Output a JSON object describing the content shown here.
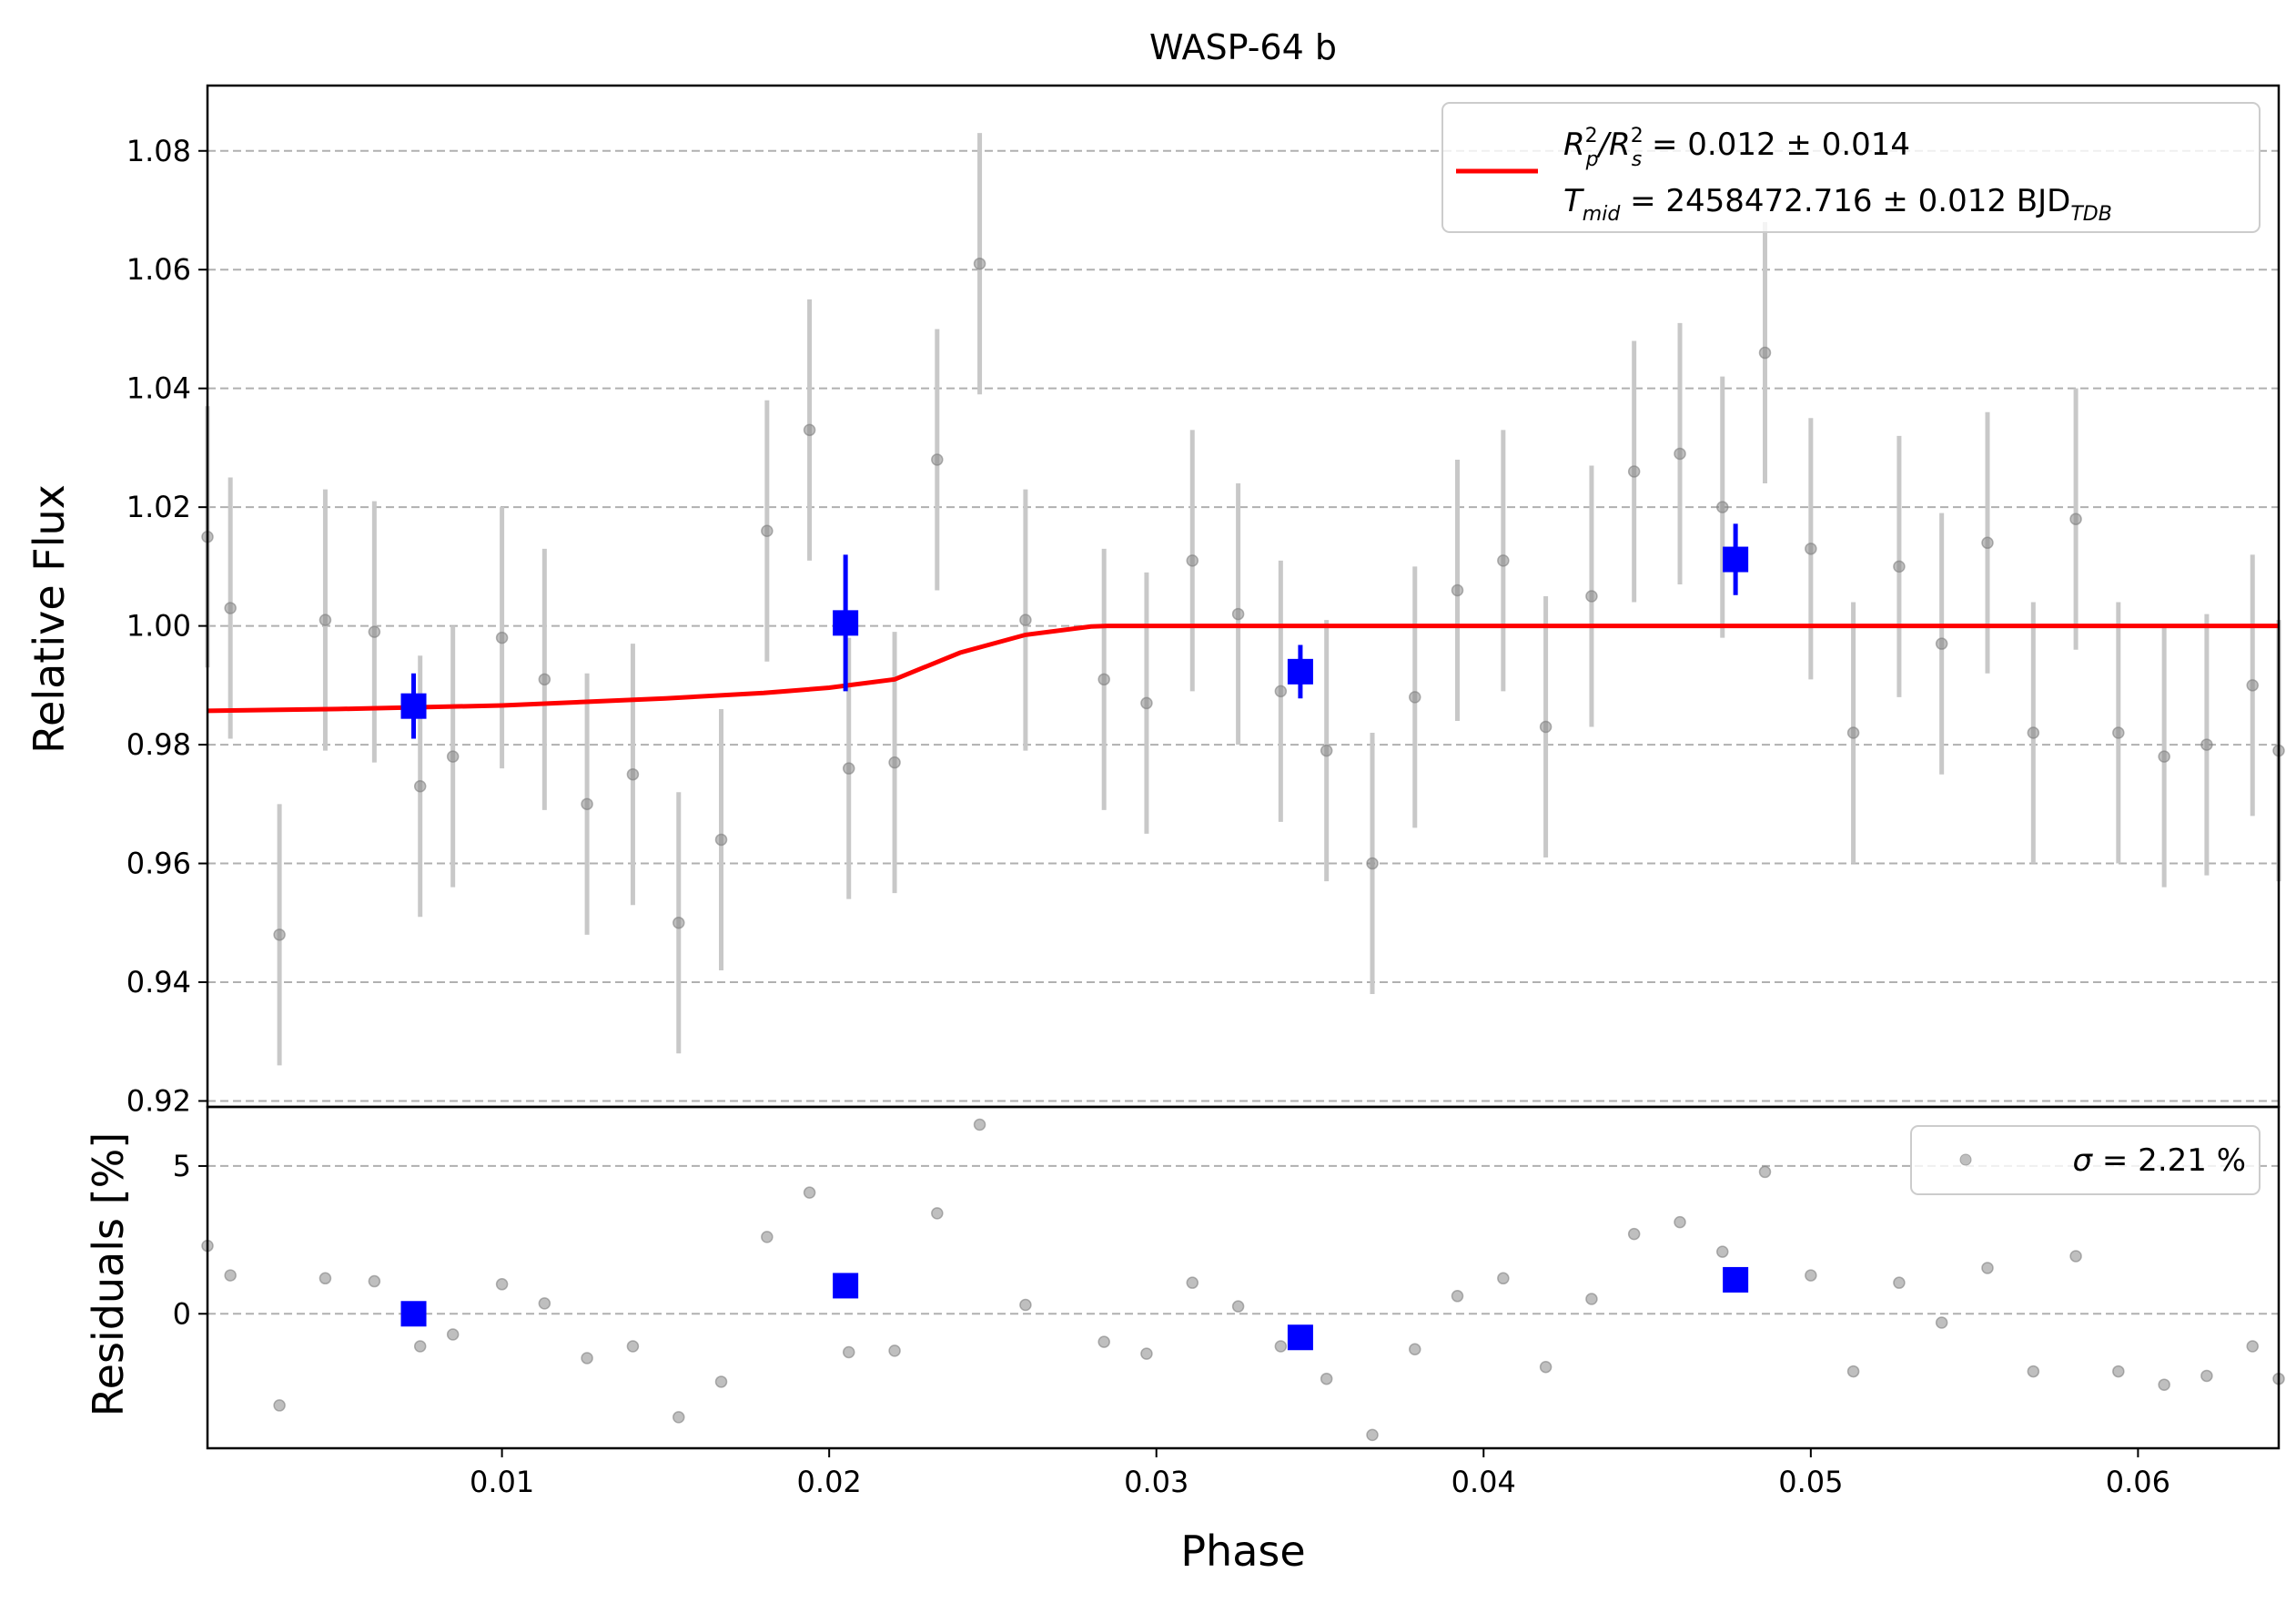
{
  "chart_data": [
    {
      "type": "scatter",
      "panel": "flux",
      "title": "WASP-64 b",
      "xlabel": "",
      "ylabel": "Relative Flux",
      "xlim": [
        0.001,
        0.0643
      ],
      "ylim": [
        0.919,
        1.091
      ],
      "yticks": [
        "0.92",
        "0.94",
        "0.96",
        "0.98",
        "1.00",
        "1.02",
        "1.04",
        "1.06",
        "1.08"
      ],
      "grid": "horizontal-dashed",
      "legend_placement": "top-right",
      "legend": {
        "line1_main": "R",
        "line1_sub_p": "p",
        "line1_mid": "/R",
        "line1_sub_s": "s",
        "line1_sup": "2",
        "line1_value": " = 0.012 ± 0.014",
        "line2_main": "T",
        "line2_sub": "mid",
        "line2_value": " = 2458472.716 ± 0.012 BJD",
        "line2_unit_sub": "TDB"
      },
      "colors": {
        "raw": "#808080",
        "errorbar": "#c8c8c8",
        "binned": "#0000ff",
        "model": "#ff0000"
      },
      "raw_points": {
        "x": [
          0.001,
          0.0017,
          0.0032,
          0.0046,
          0.0061,
          0.0075,
          0.0085,
          0.01,
          0.0113,
          0.0126,
          0.014,
          0.0154,
          0.0167,
          0.0181,
          0.0194,
          0.0206,
          0.022,
          0.0233,
          0.0246,
          0.026,
          0.0284,
          0.0297,
          0.0311,
          0.0325,
          0.0338,
          0.0352,
          0.0366,
          0.0379,
          0.0392,
          0.0406,
          0.0419,
          0.0433,
          0.0446,
          0.046,
          0.0473,
          0.0486,
          0.05,
          0.0513,
          0.0527,
          0.054,
          0.0554,
          0.0568,
          0.0581,
          0.0594,
          0.0608,
          0.0621,
          0.0635,
          0.0643
        ],
        "y": [
          1.015,
          1.003,
          0.948,
          1.001,
          0.999,
          0.973,
          0.978,
          0.998,
          0.991,
          0.97,
          0.975,
          0.95,
          0.964,
          1.016,
          1.033,
          0.976,
          0.977,
          1.028,
          1.061,
          1.001,
          0.991,
          0.987,
          1.011,
          1.002,
          0.989,
          0.979,
          0.96,
          0.988,
          1.006,
          1.011,
          0.983,
          1.005,
          1.026,
          1.029,
          1.02,
          1.046,
          1.013,
          0.982,
          1.01,
          0.997,
          1.014,
          0.982,
          1.018,
          0.982,
          0.978,
          0.98,
          0.99,
          0.979
        ],
        "yerr": 0.022
      },
      "binned_points": {
        "x": [
          0.0073,
          0.0205,
          0.0344,
          0.0477
        ],
        "y": [
          0.9865,
          1.0005,
          0.9923,
          1.0112
        ],
        "yerr": [
          0.0055,
          0.0115,
          0.0045,
          0.006
        ]
      },
      "model": {
        "x": [
          0.001,
          0.005,
          0.01,
          0.015,
          0.018,
          0.02,
          0.022,
          0.024,
          0.026,
          0.028,
          0.0285,
          0.0643
        ],
        "y": [
          0.9857,
          0.986,
          0.9866,
          0.9878,
          0.9887,
          0.9896,
          0.991,
          0.9955,
          0.9985,
          0.9999,
          1.0,
          1.0
        ]
      }
    },
    {
      "type": "scatter",
      "panel": "residuals",
      "xlabel": "Phase",
      "ylabel": "Residuals [%]",
      "xlim": [
        0.001,
        0.0643
      ],
      "ylim": [
        -4.55,
        7.0
      ],
      "xticks": [
        "0.01",
        "0.02",
        "0.03",
        "0.04",
        "0.05",
        "0.06"
      ],
      "yticks": [
        "0",
        "5"
      ],
      "grid": "horizontal-dashed",
      "legend_placement": "top-right",
      "legend": {
        "sigma_symbol": "σ",
        "sigma_text": " = 2.21 %"
      },
      "raw_points": {
        "x": [
          0.001,
          0.0017,
          0.0032,
          0.0046,
          0.0061,
          0.0075,
          0.0085,
          0.01,
          0.0113,
          0.0126,
          0.014,
          0.0154,
          0.0167,
          0.0181,
          0.0194,
          0.0206,
          0.022,
          0.0233,
          0.0246,
          0.026,
          0.0284,
          0.0297,
          0.0311,
          0.0325,
          0.0338,
          0.0352,
          0.0366,
          0.0379,
          0.0392,
          0.0406,
          0.0419,
          0.0433,
          0.0446,
          0.046,
          0.0473,
          0.0486,
          0.05,
          0.0513,
          0.0527,
          0.054,
          0.0554,
          0.0568,
          0.0581,
          0.0594,
          0.0608,
          0.0621,
          0.0635,
          0.0643
        ],
        "y": [
          2.3,
          1.3,
          -3.1,
          1.2,
          1.1,
          -1.1,
          -0.7,
          1.0,
          0.35,
          -1.5,
          -1.1,
          -3.5,
          -2.3,
          2.6,
          4.1,
          -1.3,
          -1.25,
          3.4,
          6.4,
          0.3,
          -0.95,
          -1.35,
          1.05,
          0.25,
          -1.1,
          -2.2,
          -4.1,
          -1.2,
          0.6,
          1.2,
          -1.8,
          0.5,
          2.7,
          3.1,
          2.1,
          4.8,
          1.3,
          -1.95,
          1.05,
          -0.3,
          1.55,
          -1.95,
          1.95,
          -1.95,
          -2.4,
          -2.1,
          -1.1,
          -2.2
        ]
      },
      "binned_points": {
        "x": [
          0.0073,
          0.0205,
          0.0344,
          0.0477
        ],
        "y": [
          0.0,
          0.95,
          -0.8,
          1.15
        ]
      }
    }
  ]
}
